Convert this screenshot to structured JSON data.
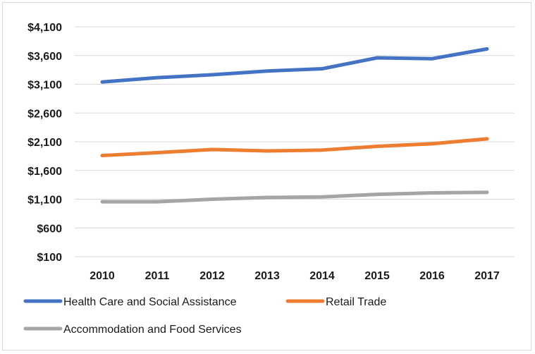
{
  "chart_data": {
    "type": "line",
    "title": "",
    "xlabel": "",
    "ylabel": "",
    "categories": [
      "2010",
      "2011",
      "2012",
      "2013",
      "2014",
      "2015",
      "2016",
      "2017"
    ],
    "ylim": [
      100,
      4100
    ],
    "yticks": [
      100,
      600,
      1100,
      1600,
      2100,
      2600,
      3100,
      3600,
      4100
    ],
    "ytick_labels": [
      "$100",
      "$600",
      "$1,100",
      "$1,600",
      "$2,100",
      "$2,600",
      "$3,100",
      "$3,600",
      "$4,100"
    ],
    "grid": true,
    "legend_position": "bottom",
    "series": [
      {
        "name": "Health Care and Social Assistance",
        "color": "#4472c4",
        "values": [
          3140,
          3215,
          3265,
          3330,
          3370,
          3560,
          3545,
          3715
        ]
      },
      {
        "name": "Retail Trade",
        "color": "#ed7d31",
        "values": [
          1860,
          1910,
          1965,
          1940,
          1955,
          2020,
          2065,
          2150
        ]
      },
      {
        "name": "Accommodation and Food Services",
        "color": "#a5a5a5",
        "values": [
          1055,
          1055,
          1100,
          1130,
          1140,
          1185,
          1210,
          1220
        ]
      }
    ]
  }
}
